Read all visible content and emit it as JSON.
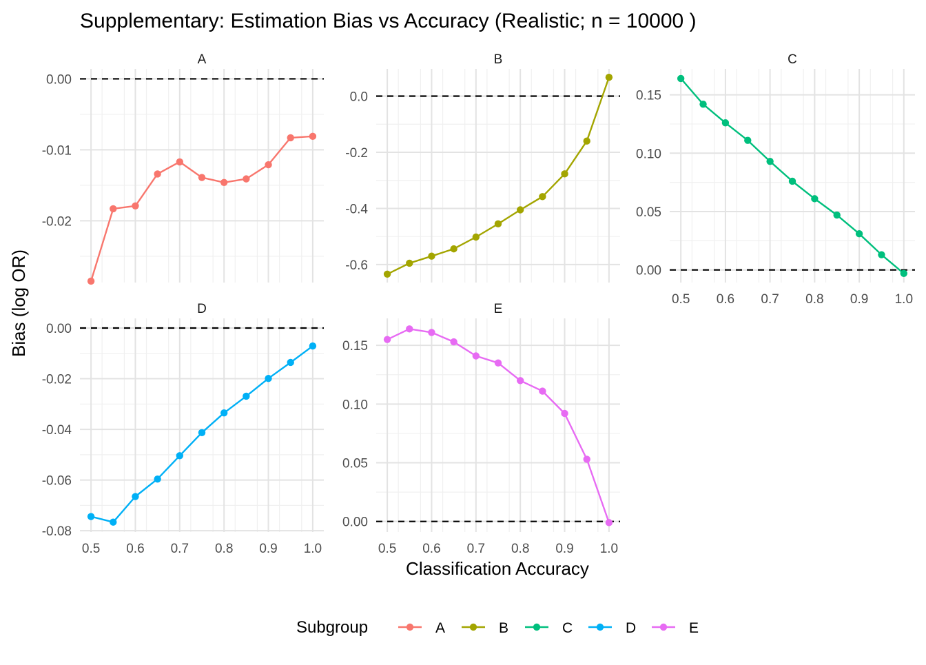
{
  "chart_data": {
    "type": "line",
    "title": "Supplementary: Estimation Bias vs Accuracy (Realistic; n = 10000 )",
    "xlabel": "Classification Accuracy",
    "ylabel": "Bias (log OR)",
    "legend": {
      "title": "Subgroup",
      "placement": "bottom",
      "entries": [
        "A",
        "B",
        "C",
        "D",
        "E"
      ]
    },
    "colors": {
      "A": "#F8766D",
      "B": "#A3A500",
      "C": "#00BF7D",
      "D": "#00B0F6",
      "E": "#E76BF3"
    },
    "x": [
      0.5,
      0.55,
      0.6,
      0.65,
      0.7,
      0.75,
      0.8,
      0.85,
      0.9,
      0.95,
      1.0
    ],
    "x_ticks": [
      "0.5",
      "0.6",
      "0.7",
      "0.8",
      "0.9",
      "1.0"
    ],
    "reference_line": 0,
    "grid": true,
    "panels": [
      {
        "name": "A",
        "ylim": [
          -0.0287,
          0.0014
        ],
        "y_ticks": [
          0.0,
          -0.01,
          -0.02
        ],
        "y_tick_labels": [
          "0.00",
          "-0.01",
          "-0.02"
        ],
        "values": [
          -0.0285,
          -0.0183,
          -0.0179,
          -0.0134,
          -0.0117,
          -0.0139,
          -0.0146,
          -0.0141,
          -0.0121,
          -0.0083,
          -0.0081
        ]
      },
      {
        "name": "B",
        "ylim": [
          -0.664,
          0.097
        ],
        "y_ticks": [
          0.0,
          -0.2,
          -0.4,
          -0.6
        ],
        "y_tick_labels": [
          "0.0",
          "-0.2",
          "-0.4",
          "-0.6"
        ],
        "values": [
          -0.634,
          -0.595,
          -0.57,
          -0.544,
          -0.502,
          -0.455,
          -0.405,
          -0.358,
          -0.277,
          -0.16,
          0.067
        ]
      },
      {
        "name": "C",
        "ylim": [
          -0.0108,
          0.1722
        ],
        "y_ticks": [
          0.0,
          0.05,
          0.1,
          0.15
        ],
        "y_tick_labels": [
          "0.00",
          "0.05",
          "0.10",
          "0.15"
        ],
        "values": [
          0.164,
          0.142,
          0.126,
          0.111,
          0.093,
          0.076,
          0.061,
          0.047,
          0.031,
          0.013,
          -0.003
        ]
      },
      {
        "name": "D",
        "ylim": [
          -0.0805,
          0.0038
        ],
        "y_ticks": [
          0.0,
          -0.02,
          -0.04,
          -0.06,
          -0.08
        ],
        "y_tick_labels": [
          "0.00",
          "-0.02",
          "-0.04",
          "-0.06",
          "-0.08"
        ],
        "values": [
          -0.0744,
          -0.0766,
          -0.0665,
          -0.0596,
          -0.0504,
          -0.0413,
          -0.0335,
          -0.0269,
          -0.0199,
          -0.0136,
          -0.0071
        ]
      },
      {
        "name": "E",
        "ylim": [
          -0.009,
          0.173
        ],
        "y_ticks": [
          0.0,
          0.05,
          0.1,
          0.15
        ],
        "y_tick_labels": [
          "0.00",
          "0.05",
          "0.10",
          "0.15"
        ],
        "values": [
          0.155,
          0.164,
          0.161,
          0.153,
          0.141,
          0.135,
          0.12,
          0.111,
          0.092,
          0.053,
          -0.001
        ]
      }
    ]
  }
}
